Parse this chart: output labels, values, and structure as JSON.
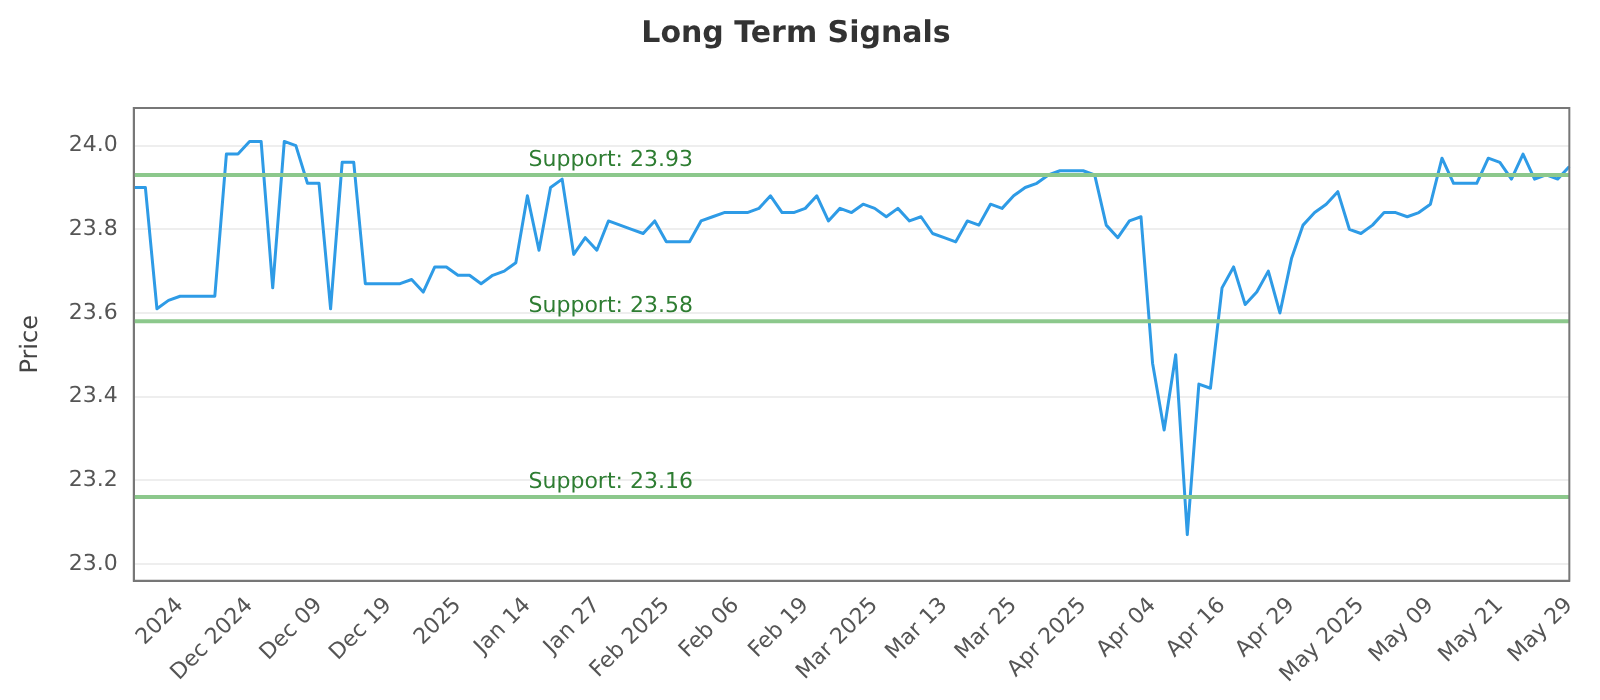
{
  "chart_data": {
    "type": "line",
    "title": "Long Term Signals",
    "ylabel": "Price",
    "categories": [
      null,
      null,
      null,
      null,
      "2024",
      null,
      null,
      null,
      null,
      null,
      "Dec 2024",
      null,
      null,
      null,
      null,
      null,
      "Dec 09",
      null,
      null,
      null,
      null,
      null,
      "Dec 19",
      null,
      null,
      null,
      null,
      null,
      "2025",
      null,
      null,
      null,
      null,
      null,
      "Jan 14",
      null,
      null,
      null,
      null,
      null,
      "Jan 27",
      null,
      null,
      null,
      null,
      null,
      "Feb 2025",
      null,
      null,
      null,
      null,
      null,
      "Feb 06",
      null,
      null,
      null,
      null,
      null,
      "Feb 19",
      null,
      null,
      null,
      null,
      null,
      "Mar 2025",
      null,
      null,
      null,
      null,
      null,
      "Mar 13",
      null,
      null,
      null,
      null,
      null,
      "Mar 25",
      null,
      null,
      null,
      null,
      null,
      "Apr 2025",
      null,
      null,
      null,
      null,
      null,
      "Apr 04",
      null,
      null,
      null,
      null,
      null,
      "Apr 16",
      null,
      null,
      null,
      null,
      null,
      "Apr 29",
      null,
      null,
      null,
      null,
      null,
      "May 2025",
      null,
      null,
      null,
      null,
      null,
      "May 09",
      null,
      null,
      null,
      null,
      null,
      "May 21",
      null,
      null,
      null,
      null,
      null,
      "May 29"
    ],
    "series": [
      {
        "color": "#2e9be6",
        "values": [
          23.9,
          23.9,
          23.61,
          23.63,
          23.64,
          23.64,
          23.64,
          23.64,
          23.98,
          23.98,
          24.01,
          24.01,
          23.66,
          24.01,
          24.0,
          23.91,
          23.91,
          23.61,
          23.96,
          23.96,
          23.67,
          23.67,
          23.67,
          23.67,
          23.68,
          23.65,
          23.71,
          23.71,
          23.69,
          23.69,
          23.67,
          23.69,
          23.7,
          23.72,
          23.88,
          23.75,
          23.9,
          23.92,
          23.74,
          23.78,
          23.75,
          23.82,
          23.81,
          23.8,
          23.79,
          23.82,
          23.77,
          23.77,
          23.77,
          23.82,
          23.83,
          23.84,
          23.84,
          23.84,
          23.85,
          23.88,
          23.84,
          23.84,
          23.85,
          23.88,
          23.82,
          23.85,
          23.84,
          23.86,
          23.85,
          23.83,
          23.85,
          23.82,
          23.83,
          23.79,
          23.78,
          23.77,
          23.82,
          23.81,
          23.86,
          23.85,
          23.88,
          23.9,
          23.91,
          23.93,
          23.94,
          23.94,
          23.94,
          23.93,
          23.81,
          23.78,
          23.82,
          23.83,
          23.48,
          23.32,
          23.5,
          23.07,
          23.43,
          23.42,
          23.66,
          23.71,
          23.62,
          23.65,
          23.7,
          23.6,
          23.73,
          23.81,
          23.84,
          23.86,
          23.89,
          23.8,
          23.79,
          23.81,
          23.84,
          23.84,
          23.83,
          23.84,
          23.86,
          23.97,
          23.91,
          23.91,
          23.91,
          23.97,
          23.96,
          23.92,
          23.98,
          23.92,
          23.93,
          23.92,
          23.95
        ]
      }
    ],
    "ylim": [
      22.96,
      24.09
    ],
    "yticks": [
      {
        "value": 23.0,
        "label": "23.0"
      },
      {
        "value": 23.2,
        "label": "23.2"
      },
      {
        "value": 23.4,
        "label": "23.4"
      },
      {
        "value": 23.6,
        "label": "23.6"
      },
      {
        "value": 23.8,
        "label": "23.8"
      },
      {
        "value": 24.0,
        "label": "24.0"
      }
    ],
    "ref_lines": [
      {
        "axis": "y",
        "value": 23.93,
        "label": "Support: 23.93",
        "color": "#8cc88c"
      },
      {
        "axis": "y",
        "value": 23.58,
        "label": "Support: 23.58",
        "color": "#8cc88c"
      },
      {
        "axis": "y",
        "value": 23.16,
        "label": "Support: 23.16",
        "color": "#8cc88c"
      }
    ],
    "grid": "y",
    "marker": "none",
    "line_style": "solid"
  }
}
